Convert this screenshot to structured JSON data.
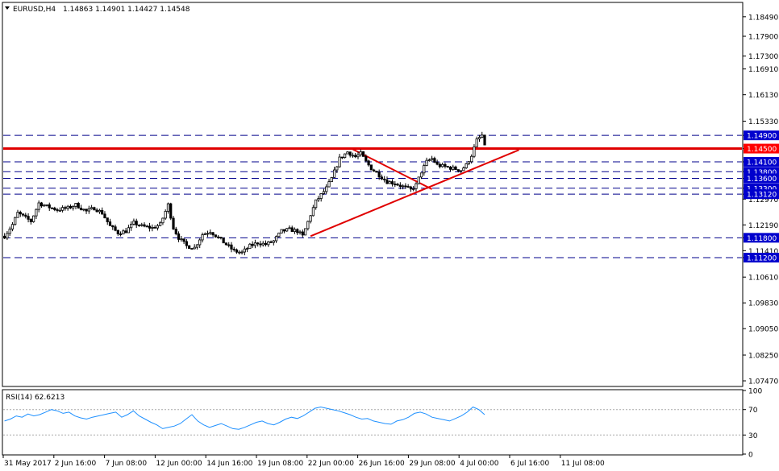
{
  "header": {
    "symbol": "EURUSD,H4",
    "ohlc": "1.14863 1.14901 1.14427 1.14548"
  },
  "colors": {
    "background": "#ffffff",
    "axis": "#000000",
    "candle": "#000000",
    "level_line": "#00008b",
    "trend_line": "#e00000",
    "label_bg": "#0000cd",
    "label_red": "#ff0000",
    "rsi_line": "#1e90ff",
    "rsi_level": "#a9a9a9"
  },
  "chart_data": [
    {
      "type": "candlestick",
      "title": "EURUSD,H4",
      "ylim": [
        1.073,
        1.189
      ],
      "y_ticks": [
        "1.18490",
        "1.17900",
        "1.17300",
        "1.16910",
        "1.16130",
        "1.15330",
        "1.14900",
        "1.14500",
        "1.14100",
        "1.13800",
        "1.13600",
        "1.13300",
        "1.13120",
        "1.12970",
        "1.12190",
        "1.11800",
        "1.11410",
        "1.11200",
        "1.10610",
        "1.09830",
        "1.09050",
        "1.08250",
        "1.07470"
      ],
      "x_ticks": [
        "31 May 2017",
        "2 Jun 16:00",
        "7 Jun 08:00",
        "12 Jun 00:00",
        "14 Jun 16:00",
        "19 Jun 08:00",
        "22 Jun 00:00",
        "26 Jun 16:00",
        "29 Jun 08:00",
        "4 Jul 00:00",
        "6 Jul 16:00",
        "11 Jul 08:00"
      ],
      "close_path": [
        [
          0,
          1.1185
        ],
        [
          3,
          1.122
        ],
        [
          5,
          1.1255
        ],
        [
          8,
          1.124
        ],
        [
          10,
          1.123
        ],
        [
          13,
          1.1285
        ],
        [
          16,
          1.1275
        ],
        [
          20,
          1.1265
        ],
        [
          24,
          1.127
        ],
        [
          27,
          1.128
        ],
        [
          31,
          1.126
        ],
        [
          34,
          1.127
        ],
        [
          37,
          1.1255
        ],
        [
          40,
          1.1215
        ],
        [
          43,
          1.1195
        ],
        [
          46,
          1.12
        ],
        [
          49,
          1.1225
        ],
        [
          52,
          1.1215
        ],
        [
          56,
          1.121
        ],
        [
          59,
          1.122
        ],
        [
          62,
          1.128
        ],
        [
          64,
          1.121
        ],
        [
          66,
          1.118
        ],
        [
          69,
          1.1155
        ],
        [
          72,
          1.115
        ],
        [
          75,
          1.119
        ],
        [
          78,
          1.12
        ],
        [
          81,
          1.118
        ],
        [
          84,
          1.116
        ],
        [
          87,
          1.114
        ],
        [
          90,
          1.1135
        ],
        [
          93,
          1.1155
        ],
        [
          96,
          1.1165
        ],
        [
          99,
          1.116
        ],
        [
          102,
          1.117
        ],
        [
          105,
          1.12
        ],
        [
          108,
          1.1205
        ],
        [
          111,
          1.12
        ],
        [
          113,
          1.1185
        ],
        [
          116,
          1.125
        ],
        [
          118,
          1.129
        ],
        [
          120,
          1.131
        ],
        [
          122,
          1.133
        ],
        [
          124,
          1.136
        ],
        [
          127,
          1.142
        ],
        [
          130,
          1.144
        ],
        [
          133,
          1.1425
        ],
        [
          135,
          1.1435
        ],
        [
          137,
          1.141
        ],
        [
          139,
          1.139
        ],
        [
          142,
          1.137
        ],
        [
          145,
          1.135
        ],
        [
          148,
          1.1345
        ],
        [
          151,
          1.1335
        ],
        [
          154,
          1.1325
        ],
        [
          156,
          1.134
        ],
        [
          158,
          1.138
        ],
        [
          160,
          1.141
        ],
        [
          162,
          1.142
        ],
        [
          164,
          1.14
        ],
        [
          167,
          1.1395
        ],
        [
          170,
          1.139
        ],
        [
          173,
          1.1385
        ],
        [
          175,
          1.14
        ],
        [
          177,
          1.143
        ],
        [
          179,
          1.1475
        ],
        [
          181,
          1.149
        ],
        [
          182,
          1.1455
        ]
      ]
    },
    {
      "type": "line",
      "title": "RSI(14) 62.6213",
      "ylim": [
        0,
        100
      ],
      "y_ticks": [
        "100",
        "70",
        "30",
        "0"
      ],
      "levels": [
        70,
        30
      ],
      "values": [
        52,
        55,
        60,
        58,
        63,
        60,
        62,
        66,
        70,
        68,
        64,
        66,
        60,
        57,
        55,
        58,
        60,
        62,
        64,
        66,
        58,
        62,
        68,
        60,
        55,
        50,
        46,
        40,
        42,
        44,
        48,
        55,
        62,
        52,
        46,
        42,
        45,
        48,
        44,
        40,
        39,
        42,
        46,
        50,
        52,
        48,
        46,
        50,
        55,
        58,
        56,
        60,
        66,
        72,
        74,
        72,
        70,
        68,
        65,
        62,
        58,
        55,
        56,
        52,
        50,
        48,
        47,
        52,
        54,
        58,
        64,
        66,
        63,
        58,
        56,
        54,
        52,
        56,
        60,
        66,
        74,
        70,
        62
      ]
    }
  ],
  "levels": [
    {
      "label": "1.14900",
      "value": 1.149,
      "style": "dash",
      "highlight": false
    },
    {
      "label": "1.14500",
      "value": 1.145,
      "style": "solid",
      "highlight": true
    },
    {
      "label": "1.14100",
      "value": 1.141,
      "style": "dash",
      "highlight": false
    },
    {
      "label": "1.13800",
      "value": 1.138,
      "style": "dash",
      "highlight": false
    },
    {
      "label": "1.13600",
      "value": 1.136,
      "style": "dash",
      "highlight": false
    },
    {
      "label": "1.13300",
      "value": 1.133,
      "style": "dash",
      "highlight": false
    },
    {
      "label": "1.13120",
      "value": 1.1312,
      "style": "dash",
      "highlight": false
    },
    {
      "label": "1.11800",
      "value": 1.118,
      "style": "dash",
      "highlight": false
    },
    {
      "label": "1.11200",
      "value": 1.112,
      "style": "dash",
      "highlight": false
    }
  ],
  "trend_lines": [
    {
      "from": [
        116,
        1.1185
      ],
      "to": [
        195,
        1.1446
      ]
    },
    {
      "from": [
        132,
        1.1448
      ],
      "to": [
        162,
        1.1327
      ]
    }
  ]
}
